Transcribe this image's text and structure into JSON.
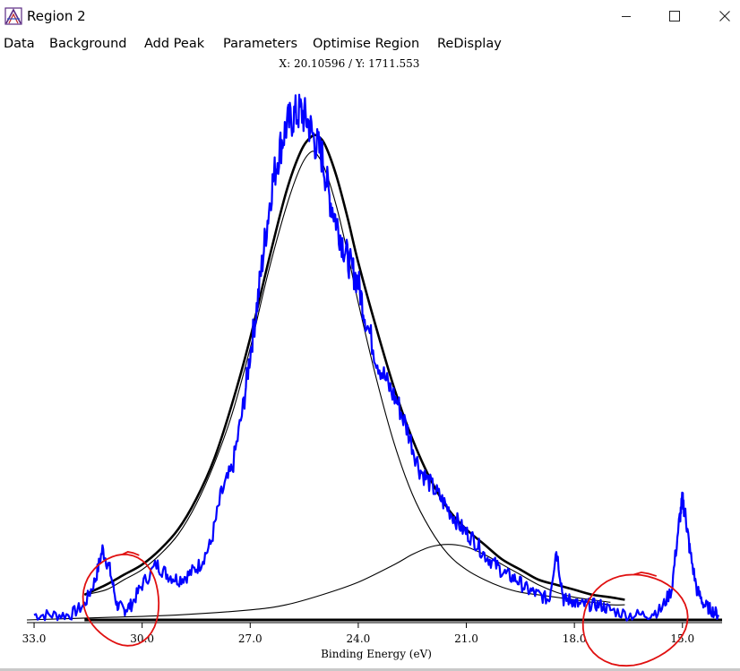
{
  "window": {
    "title": "Region 2",
    "controls": {
      "minimize": "minimize-icon",
      "maximize": "maximize-icon",
      "close": "close-icon"
    }
  },
  "menu": {
    "items": [
      "Data",
      "Background",
      "Add Peak",
      "Parameters",
      "Optimise Region",
      "ReDisplay"
    ]
  },
  "cursor_readout": "X: 20.10596 / Y: 1711.553",
  "colors": {
    "data": "#0000ff",
    "fit": "#000000",
    "annotation": "#e01010"
  },
  "chart_data": {
    "type": "line",
    "xlabel": "Binding Energy (eV)",
    "ylabel": "",
    "xlim": [
      33.2,
      13.9
    ],
    "x_reversed": true,
    "ylim": [
      0,
      1
    ],
    "xticks": [
      33.0,
      30.0,
      27.0,
      24.0,
      21.0,
      18.0,
      15.0
    ],
    "tick_labels": [
      "33.0",
      "30.0",
      "27.0",
      "24.0",
      "21.0",
      "18.0",
      "15.0"
    ],
    "grid": false,
    "legend": "none",
    "series": [
      {
        "role": "raw data",
        "color": "#0000ff",
        "x": [
          33.0,
          32.5,
          32.0,
          31.6,
          31.3,
          31.1,
          30.9,
          30.7,
          30.5,
          30.3,
          30.0,
          29.6,
          29.3,
          29.0,
          28.7,
          28.4,
          28.1,
          27.8,
          27.5,
          27.2,
          27.0,
          26.8,
          26.6,
          26.4,
          26.2,
          26.0,
          25.8,
          25.6,
          25.4,
          25.2,
          25.0,
          24.8,
          24.6,
          24.4,
          24.2,
          24.0,
          23.8,
          23.5,
          23.2,
          22.9,
          22.6,
          22.3,
          22.0,
          21.7,
          21.4,
          21.1,
          20.8,
          20.5,
          20.2,
          19.9,
          19.6,
          19.3,
          19.0,
          18.7,
          18.5,
          18.3,
          18.1,
          17.9,
          17.6,
          17.3,
          17.0,
          16.5,
          16.0,
          15.6,
          15.3,
          15.1,
          15.0,
          14.9,
          14.8,
          14.6,
          14.4,
          14.2,
          14.0
        ],
        "y": [
          0.01,
          0.01,
          0.01,
          0.03,
          0.08,
          0.14,
          0.1,
          0.03,
          0.02,
          0.03,
          0.07,
          0.11,
          0.09,
          0.08,
          0.09,
          0.11,
          0.15,
          0.25,
          0.3,
          0.42,
          0.53,
          0.63,
          0.75,
          0.86,
          0.93,
          0.98,
          1.0,
          1.01,
          0.99,
          0.95,
          0.92,
          0.84,
          0.79,
          0.74,
          0.7,
          0.67,
          0.6,
          0.52,
          0.47,
          0.43,
          0.37,
          0.3,
          0.27,
          0.24,
          0.21,
          0.18,
          0.16,
          0.13,
          0.11,
          0.09,
          0.08,
          0.06,
          0.05,
          0.04,
          0.14,
          0.04,
          0.04,
          0.03,
          0.03,
          0.03,
          0.02,
          0.01,
          0.01,
          0.02,
          0.06,
          0.19,
          0.24,
          0.2,
          0.14,
          0.06,
          0.03,
          0.02,
          0.01
        ]
      },
      {
        "role": "envelope",
        "color": "#000000",
        "x": [
          31.6,
          31.0,
          30.5,
          30.0,
          29.5,
          29.0,
          28.5,
          28.0,
          27.5,
          27.0,
          26.5,
          26.0,
          25.6,
          25.3,
          25.1,
          24.9,
          24.6,
          24.3,
          24.0,
          23.5,
          23.0,
          22.5,
          22.0,
          21.5,
          21.0,
          20.5,
          20.0,
          19.5,
          19.0,
          18.5,
          18.0,
          17.5,
          17.0,
          16.6
        ],
        "y": [
          0.05,
          0.07,
          0.09,
          0.11,
          0.14,
          0.18,
          0.24,
          0.32,
          0.43,
          0.56,
          0.71,
          0.85,
          0.93,
          0.96,
          0.96,
          0.94,
          0.88,
          0.8,
          0.71,
          0.58,
          0.46,
          0.36,
          0.28,
          0.22,
          0.18,
          0.15,
          0.12,
          0.1,
          0.08,
          0.07,
          0.06,
          0.05,
          0.045,
          0.04
        ]
      },
      {
        "role": "main component",
        "color": "#000000",
        "x": [
          31.6,
          31.0,
          30.5,
          30.0,
          29.5,
          29.0,
          28.5,
          28.0,
          27.5,
          27.0,
          26.5,
          26.0,
          25.6,
          25.3,
          25.1,
          24.9,
          24.6,
          24.3,
          24.0,
          23.5,
          23.0,
          22.5,
          22.0,
          21.5,
          21.0,
          20.5,
          20.0,
          19.5,
          19.0,
          18.5,
          18.0,
          17.5,
          17.0,
          16.6
        ],
        "y": [
          0.05,
          0.06,
          0.08,
          0.1,
          0.13,
          0.17,
          0.23,
          0.31,
          0.41,
          0.54,
          0.69,
          0.82,
          0.9,
          0.93,
          0.92,
          0.89,
          0.82,
          0.73,
          0.63,
          0.48,
          0.35,
          0.25,
          0.18,
          0.13,
          0.1,
          0.08,
          0.065,
          0.055,
          0.05,
          0.045,
          0.04,
          0.035,
          0.03,
          0.03
        ]
      },
      {
        "role": "secondary component",
        "color": "#000000",
        "x": [
          33.2,
          31.0,
          29.0,
          27.0,
          26.0,
          25.0,
          24.0,
          23.0,
          22.5,
          22.0,
          21.5,
          21.0,
          20.5,
          20.0,
          19.5,
          19.0,
          18.5,
          18.0,
          17.5,
          17.0
        ],
        "y": [
          0.0,
          0.005,
          0.01,
          0.02,
          0.03,
          0.05,
          0.075,
          0.11,
          0.13,
          0.145,
          0.15,
          0.145,
          0.13,
          0.11,
          0.09,
          0.07,
          0.055,
          0.045,
          0.04,
          0.035
        ]
      },
      {
        "role": "baseline",
        "color": "#000000",
        "x": [
          31.6,
          13.9
        ],
        "y": [
          0.0,
          0.0
        ]
      }
    ],
    "annotations": [
      {
        "type": "hand-drawn circle",
        "color": "#e01010",
        "x": [
          31.6,
          29.5
        ],
        "y": [
          -0.05,
          0.13
        ]
      },
      {
        "type": "hand-drawn circle",
        "color": "#e01010",
        "x": [
          17.8,
          14.9
        ],
        "y": [
          -0.09,
          0.09
        ]
      }
    ]
  }
}
